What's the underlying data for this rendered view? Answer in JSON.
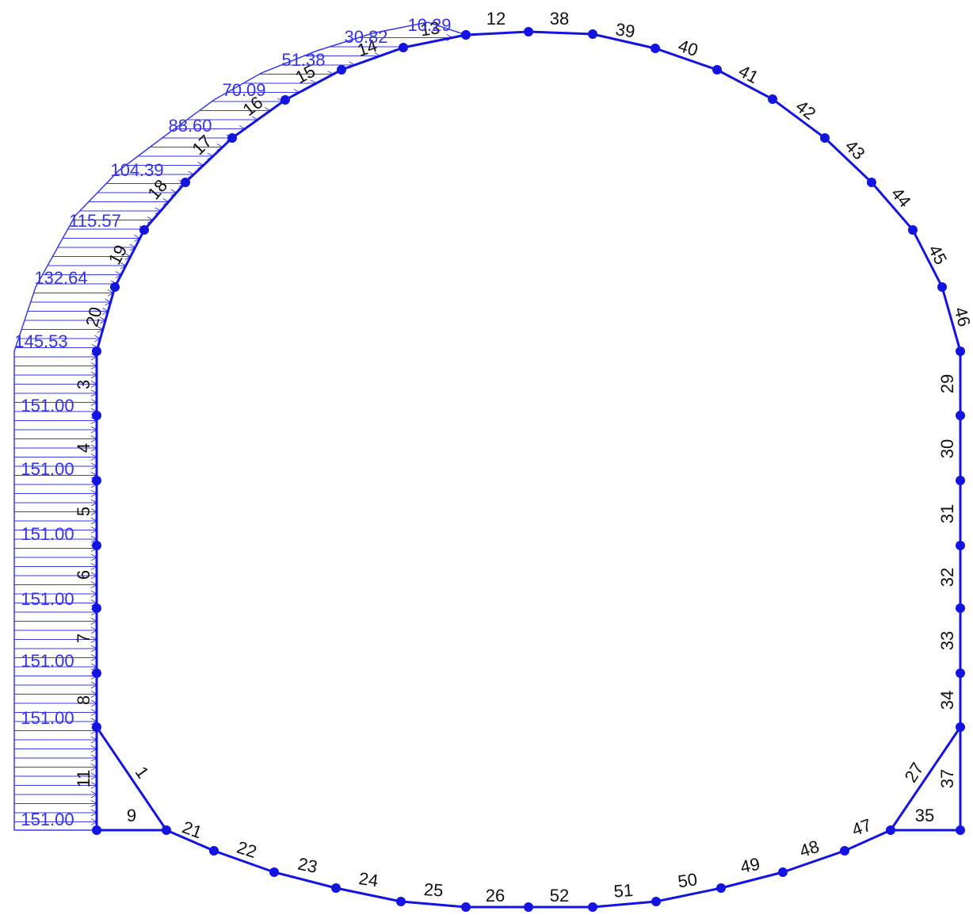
{
  "elements": [
    "12",
    "38",
    "39",
    "40",
    "41",
    "42",
    "43",
    "44",
    "45",
    "46",
    "29",
    "30",
    "31",
    "32",
    "33",
    "34",
    "37",
    "27",
    "35",
    "47",
    "48",
    "49",
    "50",
    "51",
    "52",
    "26",
    "25",
    "24",
    "23",
    "22",
    "21",
    "9",
    "1",
    "11",
    "8",
    "7",
    "6",
    "5",
    "4",
    "3",
    "20",
    "19",
    "18",
    "17",
    "16",
    "15",
    "14",
    "13"
  ],
  "loads": [
    "10.29",
    "30.82",
    "51.38",
    "70.09",
    "88.60",
    "104.39",
    "115.57",
    "132.64",
    "145.53",
    "151.00",
    "151.00",
    "151.00",
    "151.00",
    "151.00",
    "151.00",
    "151.00"
  ]
}
